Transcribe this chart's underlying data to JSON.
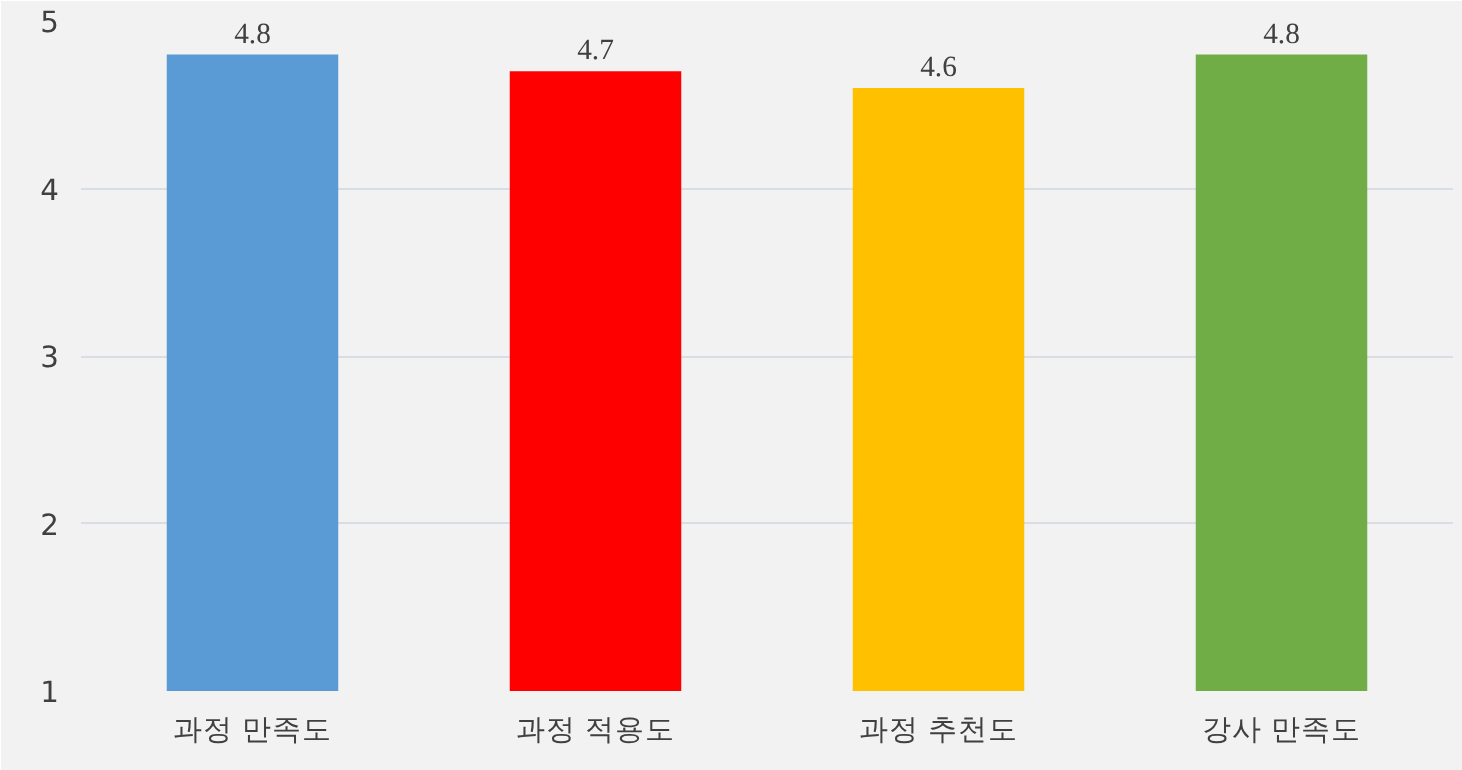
{
  "chart_data": {
    "type": "bar",
    "categories": [
      "과정 만족도",
      "과정 적용도",
      "과정 추천도",
      "강사 만족도"
    ],
    "values": [
      4.8,
      4.7,
      4.6,
      4.8
    ],
    "colors": [
      "#5b9bd5",
      "#ff0000",
      "#ffc000",
      "#70ad47"
    ],
    "ylim": [
      1,
      5
    ],
    "yticks": [
      1,
      2,
      3,
      4,
      5
    ],
    "grid": "y",
    "data_labels": true
  }
}
